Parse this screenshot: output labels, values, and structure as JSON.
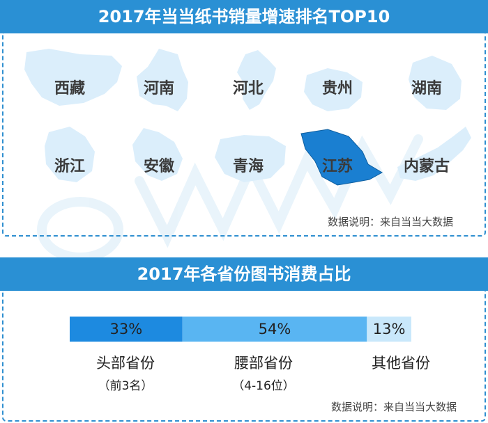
{
  "colors": {
    "banner": "#2a90d4",
    "highlight": "#1a7fd1",
    "region_light": "#dbeefb",
    "bar_dark": "#1d8ae0",
    "bar_mid": "#59b5f2",
    "bar_light": "#c9e8fb"
  },
  "top10": {
    "title": "2017年当当纸书销量增速排名TOP10",
    "provinces": [
      {
        "name": "西藏",
        "highlight": false
      },
      {
        "name": "河南",
        "highlight": false
      },
      {
        "name": "河北",
        "highlight": false
      },
      {
        "name": "贵州",
        "highlight": false
      },
      {
        "name": "湖南",
        "highlight": false
      },
      {
        "name": "浙江",
        "highlight": false
      },
      {
        "name": "安徽",
        "highlight": false
      },
      {
        "name": "青海",
        "highlight": false
      },
      {
        "name": "江苏",
        "highlight": true
      },
      {
        "name": "内蒙古",
        "highlight": false
      }
    ],
    "note": "数据说明：来自当当大数据"
  },
  "share": {
    "title": "2017年各省份图书消费占比",
    "note": "数据说明：来自当当大数据"
  },
  "chart_data": {
    "type": "bar",
    "orientation": "horizontal-stacked",
    "categories": [
      "头部省份",
      "腰部省份",
      "其他省份"
    ],
    "sublabels": [
      "（前3名）",
      "（4-16位）",
      ""
    ],
    "values": [
      33,
      54,
      13
    ],
    "value_labels": [
      "33%",
      "54%",
      "13%"
    ],
    "unit": "%"
  }
}
